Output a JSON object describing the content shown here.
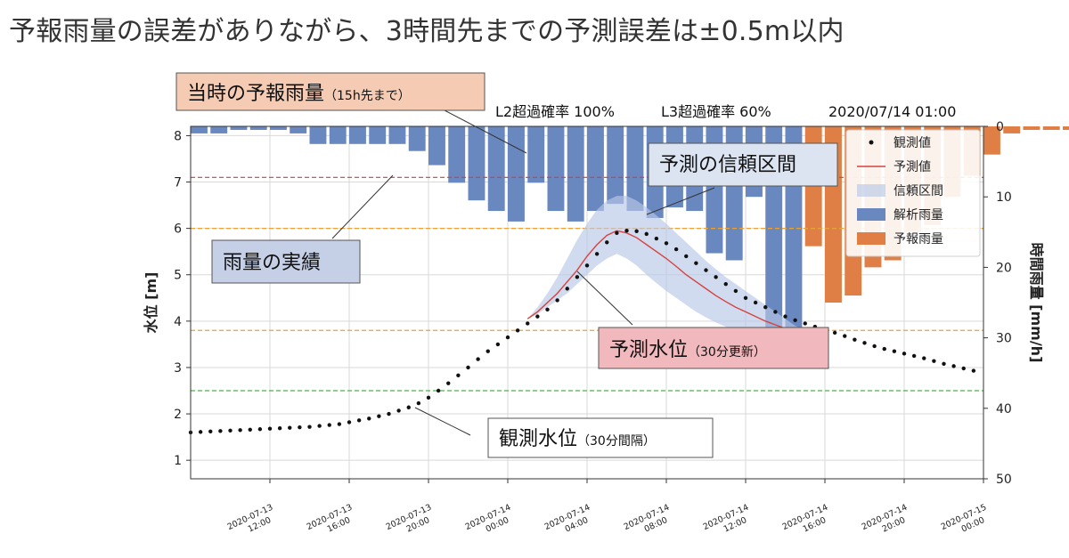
{
  "headline": "予報雨量の誤差がありながら、3時間先までの予測誤差は±0.5m以内",
  "status": {
    "l2": "L2超過確率 100%",
    "l3": "L3超過確率 60%",
    "datetime": "2020/07/14 01:00"
  },
  "callouts": {
    "forecast_rain": {
      "main": "当時の予報雨量",
      "sub": "（15h先まで）",
      "bg": "#f5cbb4"
    },
    "confidence": {
      "main": "予測の信頼区間",
      "sub": "",
      "bg": "#dce3f1"
    },
    "actual_rain": {
      "main": "雨量の実績",
      "sub": "",
      "bg": "#c5d0e6"
    },
    "pred_level": {
      "main": "予測水位",
      "sub": "（30分更新）",
      "bg": "#f1b9bd"
    },
    "obs_level": {
      "main": "観測水位",
      "sub": "（30分間隔）",
      "bg": "#ffffff"
    }
  },
  "colors": {
    "observed": "#111111",
    "predicted": "#d6423e",
    "confidence": "#b8c7e6",
    "analysis_rain": "#6a88c0",
    "forecast_rain": "#e07f45",
    "line_red": "#d63a3a",
    "line_orange": "#e6a23c",
    "line_green": "#4caf50"
  },
  "chart_data": {
    "type": "line",
    "title": "",
    "xlabel": "",
    "ylabel": "水位 [m]",
    "y2label": "時間雨量 [mm/h]",
    "ylim": [
      0.6,
      8.2
    ],
    "y2lim": [
      0,
      50
    ],
    "y2_inverted": true,
    "xlim": [
      "2020-07-13 08:00",
      "2020-07-15 00:00"
    ],
    "grid": true,
    "yticks": [
      1,
      2,
      3,
      4,
      5,
      6,
      7,
      8
    ],
    "y2ticks": [
      0,
      10,
      20,
      30,
      40,
      50
    ],
    "xticks": [
      {
        "time": "2020-07-13 12:00",
        "line1": "2020-07-13",
        "line2": "12:00"
      },
      {
        "time": "2020-07-13 16:00",
        "line1": "2020-07-13",
        "line2": "16:00"
      },
      {
        "time": "2020-07-13 20:00",
        "line1": "2020-07-13",
        "line2": "20:00"
      },
      {
        "time": "2020-07-14 00:00",
        "line1": "2020-07-14",
        "line2": "00:00"
      },
      {
        "time": "2020-07-14 04:00",
        "line1": "2020-07-14",
        "line2": "04:00"
      },
      {
        "time": "2020-07-14 08:00",
        "line1": "2020-07-14",
        "line2": "08:00"
      },
      {
        "time": "2020-07-14 12:00",
        "line1": "2020-07-14",
        "line2": "12:00"
      },
      {
        "time": "2020-07-14 16:00",
        "line1": "2020-07-14",
        "line2": "16:00"
      },
      {
        "time": "2020-07-14 20:00",
        "line1": "2020-07-14",
        "line2": "20:00"
      },
      {
        "time": "2020-07-15 00:00",
        "line1": "2020-07-15",
        "line2": "00:00"
      }
    ],
    "legend": {
      "placement": "top-right",
      "items": [
        {
          "key": "observed",
          "label": "観測値",
          "kind": "dot"
        },
        {
          "key": "predicted",
          "label": "予測値",
          "kind": "line"
        },
        {
          "key": "confidence",
          "label": "信頼区間",
          "kind": "band"
        },
        {
          "key": "analysis_rain",
          "label": "解析雨量",
          "kind": "bar"
        },
        {
          "key": "forecast_rain",
          "label": "予報雨量",
          "kind": "bar"
        }
      ]
    },
    "thresholds": [
      {
        "value": 7.1,
        "color": "#d63a3a"
      },
      {
        "value": 6.0,
        "color": "#e6a23c"
      },
      {
        "value": 3.8,
        "color": "#e6a23c"
      },
      {
        "value": 2.5,
        "color": "#4caf50"
      }
    ],
    "observed": {
      "start": "2020-07-13 08:00",
      "step_minutes": 30,
      "values": [
        1.6,
        1.61,
        1.62,
        1.63,
        1.64,
        1.65,
        1.66,
        1.67,
        1.68,
        1.69,
        1.7,
        1.71,
        1.72,
        1.74,
        1.76,
        1.78,
        1.82,
        1.86,
        1.9,
        1.95,
        2.0,
        2.07,
        2.14,
        2.23,
        2.35,
        2.5,
        2.66,
        2.83,
        3.0,
        3.18,
        3.35,
        3.5,
        3.65,
        3.8,
        3.95,
        4.1,
        4.25,
        4.45,
        4.7,
        4.95,
        5.2,
        5.45,
        5.7,
        5.9,
        5.95,
        5.94,
        5.88,
        5.78,
        5.68,
        5.55,
        5.4,
        5.25,
        5.1,
        4.95,
        4.8,
        4.65,
        4.5,
        4.4,
        4.3,
        4.2,
        4.1,
        4.02,
        3.95,
        3.88,
        3.82,
        3.75,
        3.68,
        3.6,
        3.53,
        3.46,
        3.4,
        3.35,
        3.3,
        3.25,
        3.2,
        3.14,
        3.08,
        3.03,
        2.98,
        2.93
      ]
    },
    "predicted": {
      "start": "2020-07-14 01:00",
      "step_minutes": 30,
      "values": [
        4.05,
        4.2,
        4.4,
        4.6,
        4.85,
        5.1,
        5.4,
        5.65,
        5.85,
        5.95,
        5.9,
        5.8,
        5.65,
        5.5,
        5.35,
        5.18,
        5.0,
        4.85,
        4.7,
        4.55,
        4.42,
        4.3,
        4.2,
        4.1,
        4.0,
        3.92,
        3.84,
        3.78,
        3.72
      ],
      "lower": [
        4.05,
        4.15,
        4.3,
        4.45,
        4.6,
        4.8,
        5.0,
        5.2,
        5.35,
        5.45,
        5.35,
        5.2,
        5.0,
        4.82,
        4.65,
        4.5,
        4.35,
        4.2,
        4.08,
        3.97,
        3.88,
        3.8,
        3.74,
        3.69,
        3.65,
        3.62,
        3.61,
        3.62,
        3.62
      ],
      "upper": [
        4.05,
        4.3,
        4.6,
        4.95,
        5.35,
        5.75,
        6.1,
        6.4,
        6.6,
        6.7,
        6.7,
        6.6,
        6.45,
        6.28,
        6.1,
        5.9,
        5.7,
        5.5,
        5.3,
        5.12,
        4.95,
        4.8,
        4.65,
        4.5,
        4.35,
        4.2,
        4.05,
        3.9,
        3.8
      ]
    },
    "rain": {
      "start": "2020-07-13 08:00",
      "step_minutes": 60,
      "analysis": [
        1,
        1,
        0.5,
        0.5,
        0.5,
        1,
        2.5,
        2.5,
        2.5,
        2.5,
        2.5,
        3.5,
        5.5,
        8,
        10.5,
        12,
        13.5,
        8,
        12,
        13.5,
        12,
        11,
        12,
        13,
        11.5,
        12,
        18,
        19,
        10,
        29.5,
        29
      ],
      "forecast": [
        17,
        25,
        24,
        20,
        19,
        15,
        14,
        10,
        7,
        4,
        1,
        0.5,
        0.5,
        0.5,
        0.5
      ]
    }
  }
}
